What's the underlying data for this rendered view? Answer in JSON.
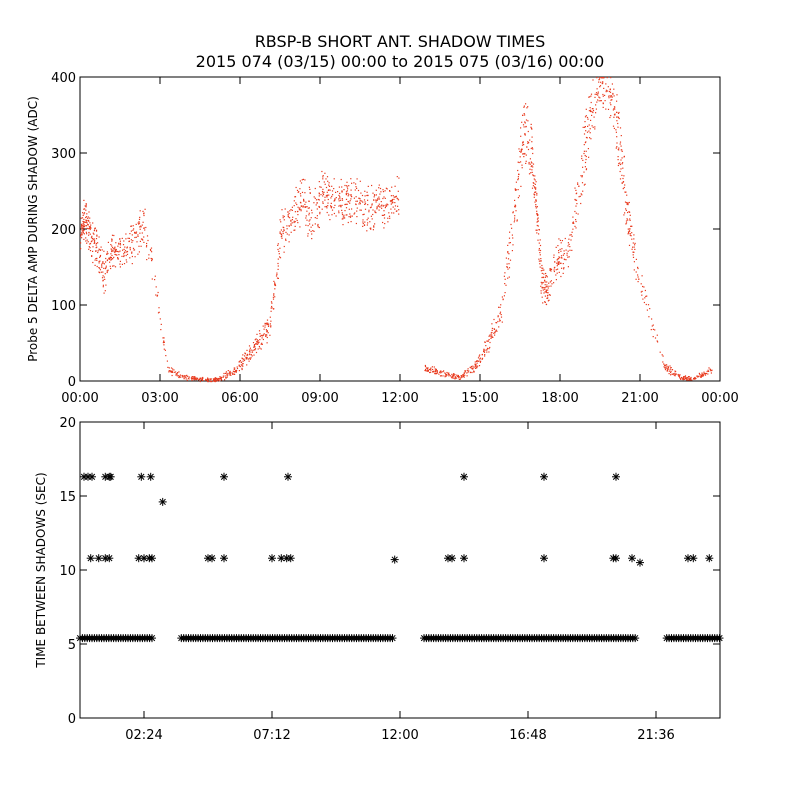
{
  "title_line1": "RBSP-B SHORT ANT. SHADOW TIMES",
  "title_line2": "2015 074 (03/15) 00:00 to 2015 075 (03/16) 00:00",
  "colors": {
    "top_series": "#e8391d",
    "bottom_series": "#000000",
    "axes": "#000000"
  },
  "chart_data": [
    {
      "type": "scatter",
      "ylabel": "Probe 5 DELTA AMP DURING SHADOW (ADC)",
      "xlim": [
        0,
        24
      ],
      "ylim": [
        0,
        400
      ],
      "xticks": [
        0,
        3,
        6,
        9,
        12,
        15,
        18,
        21,
        24
      ],
      "xtick_labels": [
        "00:00",
        "03:00",
        "06:00",
        "09:00",
        "12:00",
        "15:00",
        "18:00",
        "21:00",
        "00:00"
      ],
      "yticks": [
        0,
        100,
        200,
        300,
        400
      ],
      "ytick_labels": [
        "0",
        "100",
        "200",
        "300",
        "400"
      ],
      "series_color": "#e8391d",
      "segments": [
        {
          "x": [
            0.0,
            0.15,
            0.35,
            0.6,
            0.9,
            1.2,
            1.6,
            2.0,
            2.4,
            3.3,
            4.0,
            4.7,
            5.2,
            5.8,
            6.3,
            6.7,
            7.1,
            7.5,
            7.9,
            8.3,
            8.7,
            9.1,
            9.5,
            9.9,
            10.3,
            10.7,
            11.1,
            11.5,
            11.95
          ],
          "y": [
            190,
            215,
            200,
            175,
            140,
            175,
            170,
            185,
            210,
            15,
            5,
            2,
            3,
            15,
            35,
            55,
            70,
            190,
            210,
            240,
            210,
            250,
            240,
            235,
            240,
            225,
            230,
            235,
            240
          ],
          "spread": [
            35,
            35,
            35,
            40,
            30,
            25,
            25,
            30,
            40,
            6,
            4,
            3,
            4,
            8,
            12,
            15,
            20,
            35,
            35,
            40,
            40,
            35,
            35,
            35,
            35,
            35,
            35,
            35,
            35
          ]
        },
        {
          "x": [
            12.9,
            13.5,
            14.2,
            14.8,
            15.3,
            15.8,
            16.3,
            16.6,
            16.9,
            17.1,
            17.3,
            17.5,
            17.9,
            18.3,
            18.8,
            19.1,
            19.5,
            19.9,
            20.2,
            20.5,
            20.8,
            21.9,
            22.5,
            23.0,
            23.7
          ],
          "y": [
            18,
            12,
            5,
            20,
            50,
            95,
            230,
            330,
            300,
            230,
            130,
            120,
            160,
            170,
            280,
            340,
            390,
            380,
            320,
            220,
            160,
            20,
            5,
            4,
            15
          ],
          "spread": [
            6,
            5,
            4,
            8,
            15,
            25,
            50,
            60,
            50,
            40,
            35,
            30,
            30,
            30,
            50,
            50,
            30,
            40,
            50,
            40,
            30,
            8,
            4,
            3,
            6
          ]
        }
      ]
    },
    {
      "type": "scatter",
      "ylabel": "TIME BETWEEN SHADOWS (SEC)",
      "xlim": [
        0,
        24
      ],
      "ylim": [
        0,
        20
      ],
      "xticks": [
        2.4,
        7.2,
        12.0,
        16.8,
        21.6
      ],
      "xtick_labels": [
        "02:24",
        "07:12",
        "12:00",
        "16:48",
        "21:36"
      ],
      "yticks": [
        0,
        5,
        10,
        15,
        20
      ],
      "ytick_labels": [
        "0",
        "5",
        "10",
        "15",
        "20"
      ],
      "marker": "asterisk",
      "series_color": "#000000",
      "baseline_value": 5.4,
      "baseline_ranges": [
        [
          0.0,
          2.7
        ],
        [
          3.8,
          11.8
        ],
        [
          12.9,
          20.9
        ],
        [
          22.0,
          24.0
        ]
      ],
      "points": [
        {
          "x": 0.15,
          "y": 16.3
        },
        {
          "x": 0.3,
          "y": 16.3
        },
        {
          "x": 0.45,
          "y": 16.3
        },
        {
          "x": 0.95,
          "y": 16.3
        },
        {
          "x": 1.1,
          "y": 16.3
        },
        {
          "x": 1.15,
          "y": 16.3
        },
        {
          "x": 2.3,
          "y": 16.3
        },
        {
          "x": 2.65,
          "y": 16.3
        },
        {
          "x": 3.1,
          "y": 14.6
        },
        {
          "x": 5.4,
          "y": 16.3
        },
        {
          "x": 7.8,
          "y": 16.3
        },
        {
          "x": 14.4,
          "y": 16.3
        },
        {
          "x": 17.4,
          "y": 16.3
        },
        {
          "x": 20.1,
          "y": 16.3
        },
        {
          "x": 0.4,
          "y": 10.8
        },
        {
          "x": 0.7,
          "y": 10.8
        },
        {
          "x": 0.95,
          "y": 10.8
        },
        {
          "x": 1.1,
          "y": 10.8
        },
        {
          "x": 2.2,
          "y": 10.8
        },
        {
          "x": 2.4,
          "y": 10.8
        },
        {
          "x": 2.6,
          "y": 10.8
        },
        {
          "x": 2.7,
          "y": 10.8
        },
        {
          "x": 4.8,
          "y": 10.8
        },
        {
          "x": 4.95,
          "y": 10.8
        },
        {
          "x": 5.4,
          "y": 10.8
        },
        {
          "x": 7.2,
          "y": 10.8
        },
        {
          "x": 7.55,
          "y": 10.8
        },
        {
          "x": 7.75,
          "y": 10.8
        },
        {
          "x": 7.9,
          "y": 10.8
        },
        {
          "x": 11.8,
          "y": 10.7
        },
        {
          "x": 13.8,
          "y": 10.8
        },
        {
          "x": 13.95,
          "y": 10.8
        },
        {
          "x": 14.4,
          "y": 10.8
        },
        {
          "x": 17.4,
          "y": 10.8
        },
        {
          "x": 20.0,
          "y": 10.8
        },
        {
          "x": 20.1,
          "y": 10.8
        },
        {
          "x": 20.7,
          "y": 10.8
        },
        {
          "x": 21.0,
          "y": 10.5
        },
        {
          "x": 22.8,
          "y": 10.8
        },
        {
          "x": 23.0,
          "y": 10.8
        },
        {
          "x": 23.6,
          "y": 10.8
        }
      ]
    }
  ]
}
